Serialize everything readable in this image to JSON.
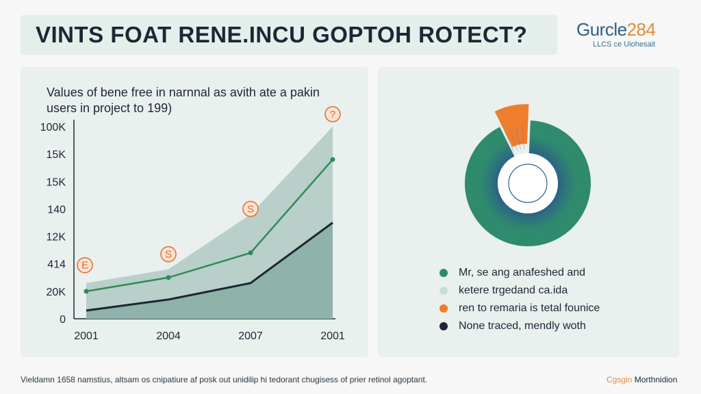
{
  "header": {
    "title": "VINTS FOAT RENE.INCU GOPTOH ROTECT?"
  },
  "brand": {
    "name": "Gurcle",
    "number": "284",
    "subtitle": "LLCS ce Uiohesait"
  },
  "chart_data": [
    {
      "type": "area",
      "title": "Values of bene free in narnnal as avith ate a pakin users in project to 199)",
      "categories": [
        "2001",
        "2004",
        "2007",
        "2001"
      ],
      "y_tick_labels": [
        "0",
        "20K",
        "414",
        "12K",
        "140",
        "15K",
        "15K",
        "100K"
      ],
      "y_tick_values": [
        0,
        1,
        2,
        3,
        4,
        5,
        6,
        7
      ],
      "ylim": [
        0,
        7
      ],
      "series": [
        {
          "values": [
            1.3,
            1.8,
            3.8,
            7.0
          ],
          "color": "#b9cfc9",
          "style": "area"
        },
        {
          "values": [
            1.0,
            1.5,
            2.4,
            5.8
          ],
          "color": "#2e8b57",
          "style": "line-points"
        },
        {
          "values": [
            0.3,
            0.7,
            1.3,
            3.5
          ],
          "color": "#1b2735",
          "style": "line-area"
        }
      ],
      "annotations": [
        {
          "label": "E",
          "x_index": 0,
          "y": 1.95
        },
        {
          "label": "S",
          "x_index": 1,
          "y": 2.35
        },
        {
          "label": "S",
          "x_index": 2,
          "y": 4.0
        },
        {
          "label": "?",
          "x_index": 3,
          "y": 7.45
        }
      ],
      "grid": false
    },
    {
      "type": "pie",
      "slices": [
        {
          "label": "Mr, se ang anafeshed and",
          "value": 92,
          "color": "#2e8b6b"
        },
        {
          "label": "ren to remaria is tetal founice",
          "value": 8,
          "color": "#ef7d2e"
        }
      ],
      "legend": [
        {
          "label": "Mr, se ang anafeshed and",
          "color": "#2e8b6b"
        },
        {
          "label": "ketere trgedand ca.ida",
          "color": "#c9ddd6"
        },
        {
          "label": "ren to remaria is tetal founice",
          "color": "#ef7d2e"
        },
        {
          "label": "None traced, mendly woth",
          "color": "#1b2735"
        }
      ],
      "legend_position": "bottom"
    }
  ],
  "footer": {
    "text": "Vieldamn 1658 namstius, altsam os cnipatiure af posk out unidilip hi tedorant chugisess of prier retinol agoptant.",
    "brand_accent": "Cgsgin",
    "brand_text": " Morthnidion"
  }
}
